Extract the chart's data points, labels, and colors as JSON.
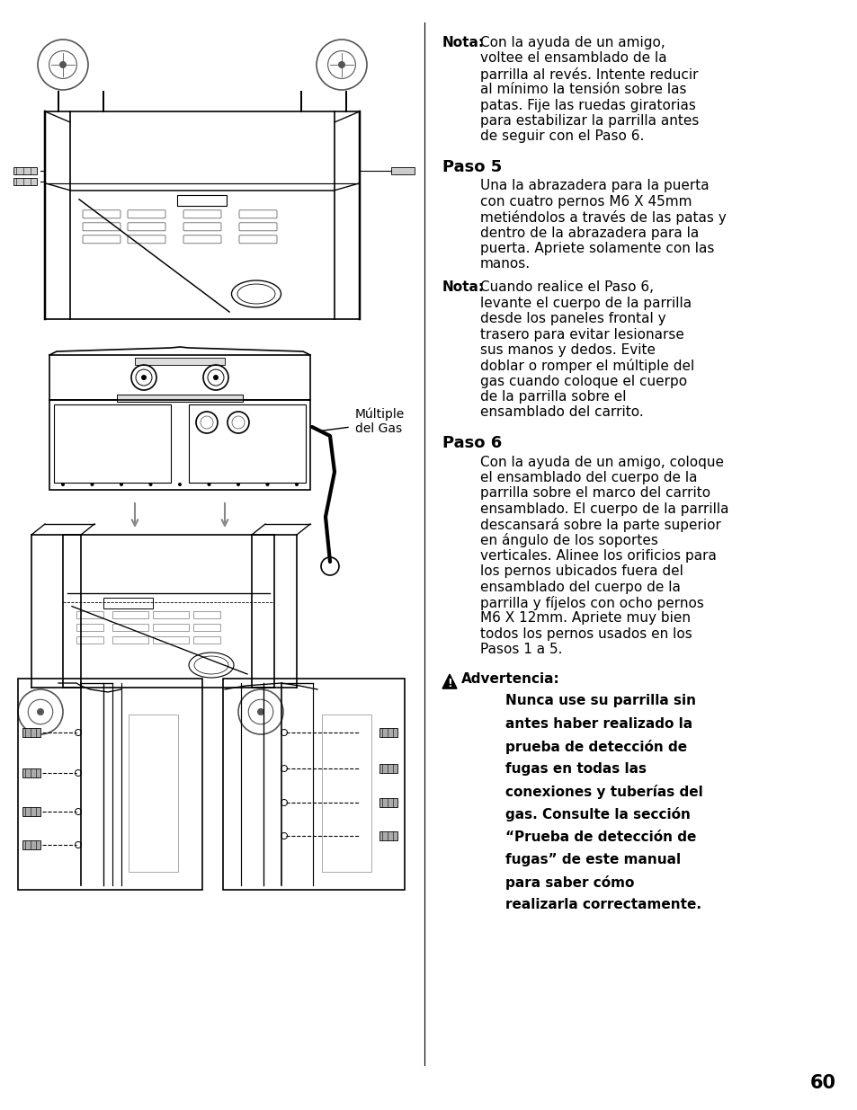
{
  "page_number": "60",
  "bg_color": "#ffffff",
  "text_color": "#000000",
  "nota1": {
    "label": "Nota:",
    "lines": [
      "Con la ayuda de un amigo,",
      "voltee el ensamblado de la",
      "parrilla al revés. Intente reducir",
      "al mínimo la tensión sobre las",
      "patas. Fije las ruedas giratorias",
      "para estabilizar la parrilla antes",
      "de seguir con el Paso 6."
    ]
  },
  "paso5": {
    "heading": "Paso 5",
    "lines": [
      "Una la abrazadera para la puerta",
      "con cuatro pernos M6 X 45mm",
      "metiéndolos a través de las patas y",
      "dentro de la abrazadera para la",
      "puerta. Apriete solamente con las",
      "manos."
    ]
  },
  "nota2": {
    "label": "Nota:",
    "lines": [
      "Cuando realice el Paso 6,",
      "levante el cuerpo de la parrilla",
      "desde los paneles frontal y",
      "trasero para evitar lesionarse",
      "sus manos y dedos. Evite",
      "doblar o romper el múltiple del",
      "gas cuando coloque el cuerpo",
      "de la parrilla sobre el",
      "ensamblado del carrito."
    ]
  },
  "paso6": {
    "heading": "Paso 6",
    "lines": [
      "Con la ayuda de un amigo, coloque",
      "el ensamblado del cuerpo de la",
      "parrilla sobre el marco del carrito",
      "ensamblado. El cuerpo de la parrilla",
      "descansará sobre la parte superior",
      "en ángulo de los soportes",
      "verticales. Alinee los orificios para",
      "los pernos ubicados fuera del",
      "ensamblado del cuerpo de la",
      "parrilla y fíjelos con ocho pernos",
      "M6 X 12mm. Apriete muy bien",
      "todos los pernos usados en los",
      "Pasos 1 a 5."
    ]
  },
  "advertencia": {
    "label": "Advertencia:",
    "lines": [
      "Nunca use su parrilla sin",
      "antes haber realizado la",
      "prueba de detección de",
      "fugas en todas las",
      "conexiones y tuberías del",
      "gas. Consulte la sección",
      "“Prueba de detección de",
      "fugas” de este manual",
      "para saber cómo",
      "realizarla correctamente."
    ]
  },
  "multiple_del_gas_label": "Múltiple\ndel Gas",
  "font_size_body": 11.0,
  "font_size_heading": 13,
  "font_size_page": 15
}
